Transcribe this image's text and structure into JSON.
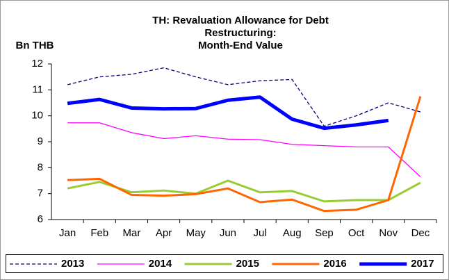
{
  "chart_data": {
    "type": "line",
    "title": [
      "TH: Revaluation Allowance for Debt",
      "Restructuring:",
      "Month-End Value"
    ],
    "y_label": "Bn THB",
    "categories": [
      "Jan",
      "Feb",
      "Mar",
      "Apr",
      "May",
      "Jun",
      "Jul",
      "Aug",
      "Sep",
      "Oct",
      "Nov",
      "Dec"
    ],
    "series": [
      {
        "name": "2013",
        "color": "#000080",
        "width": 1.3,
        "dashed": true,
        "values": [
          11.2,
          11.5,
          11.6,
          11.85,
          11.5,
          11.2,
          11.35,
          11.4,
          9.6,
          10.0,
          10.5,
          10.15
        ]
      },
      {
        "name": "2014",
        "color": "#ff00ff",
        "width": 1.3,
        "dashed": false,
        "values": [
          9.73,
          9.73,
          9.35,
          9.12,
          9.23,
          9.1,
          9.08,
          8.9,
          8.85,
          8.8,
          8.8,
          7.65
        ]
      },
      {
        "name": "2015",
        "color": "#99cc33",
        "width": 3,
        "dashed": false,
        "values": [
          7.2,
          7.45,
          7.05,
          7.12,
          7.0,
          7.5,
          7.05,
          7.1,
          6.7,
          6.75,
          6.75,
          7.42
        ]
      },
      {
        "name": "2016",
        "color": "#ff6600",
        "width": 3,
        "dashed": false,
        "values": [
          7.52,
          7.57,
          6.95,
          6.92,
          6.98,
          7.2,
          6.67,
          6.77,
          6.33,
          6.38,
          6.75,
          10.75
        ]
      },
      {
        "name": "2017",
        "color": "#0000ff",
        "width": 5,
        "dashed": false,
        "values": [
          10.48,
          10.63,
          10.3,
          10.27,
          10.28,
          10.6,
          10.72,
          9.87,
          9.52,
          9.65,
          9.82,
          null
        ]
      }
    ],
    "ylim": [
      6,
      12
    ],
    "yticks": [
      6,
      7,
      8,
      9,
      10,
      11,
      12
    ],
    "grid": false,
    "legend": "bottom"
  }
}
